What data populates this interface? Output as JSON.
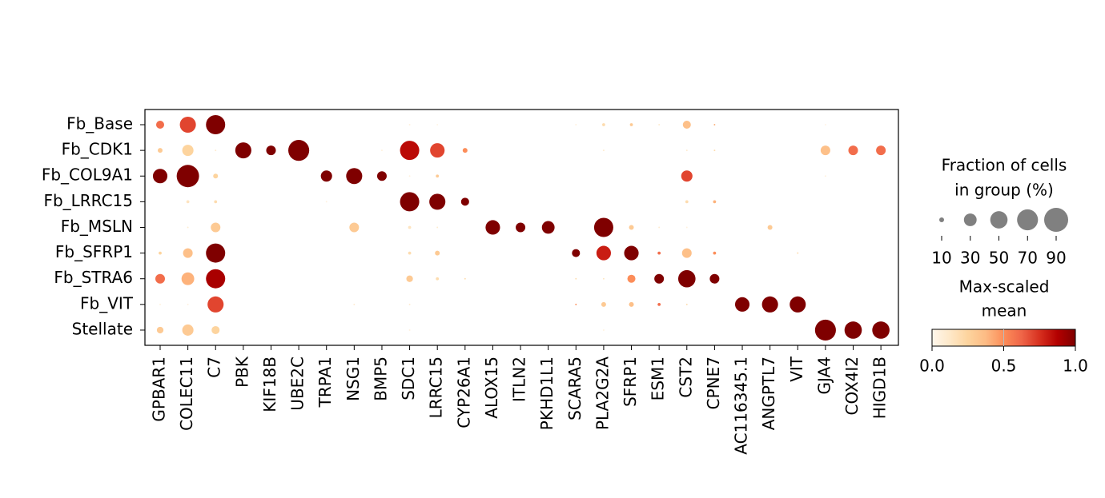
{
  "chart_data": {
    "type": "dotplot",
    "rows": [
      "Fb_Base",
      "Fb_CDK1",
      "Fb_COL9A1",
      "Fb_LRRC15",
      "Fb_MSLN",
      "Fb_SFRP1",
      "Fb_STRA6",
      "Fb_VIT",
      "Stellate"
    ],
    "columns": [
      "GPBAR1",
      "COLEC11",
      "C7",
      "PBK",
      "KIF18B",
      "UBE2C",
      "TRPA1",
      "NSG1",
      "BMP5",
      "SDC1",
      "LRRC15",
      "CYP26A1",
      "ALOX15",
      "ITLN2",
      "PKHD1L1",
      "SCARA5",
      "PLA2G2A",
      "SFRP1",
      "ESM1",
      "CST2",
      "CPNE7",
      "AC116345.1",
      "ANGPTL7",
      "VIT",
      "GJA4",
      "COX4I2",
      "HIGD1B"
    ],
    "fraction": [
      [
        16,
        44,
        60,
        0,
        0,
        0,
        0,
        0,
        0,
        7,
        7,
        0,
        0,
        0,
        0,
        7,
        8,
        8,
        7,
        16,
        7,
        0,
        0,
        0,
        7,
        0,
        0
      ],
      [
        10,
        25,
        7,
        44,
        20,
        70,
        0,
        0,
        7,
        60,
        37,
        10,
        0,
        0,
        0,
        0,
        7,
        0,
        0,
        7,
        7,
        0,
        0,
        0,
        20,
        20,
        20
      ],
      [
        37,
        79,
        10,
        0,
        0,
        0,
        25,
        44,
        20,
        7,
        8,
        0,
        0,
        0,
        0,
        0,
        0,
        0,
        0,
        25,
        0,
        0,
        0,
        0,
        7,
        0,
        0
      ],
      [
        0,
        8,
        8,
        0,
        0,
        0,
        7,
        0,
        0,
        60,
        44,
        16,
        0,
        0,
        0,
        0,
        0,
        0,
        0,
        8,
        8,
        0,
        0,
        0,
        0,
        0,
        0
      ],
      [
        0,
        7,
        20,
        0,
        0,
        0,
        0,
        20,
        0,
        8,
        7,
        0,
        37,
        20,
        30,
        0,
        60,
        10,
        7,
        7,
        0,
        0,
        10,
        0,
        0,
        0,
        0
      ],
      [
        8,
        20,
        60,
        0,
        0,
        0,
        0,
        0,
        0,
        8,
        10,
        0,
        0,
        0,
        0,
        16,
        37,
        37,
        8,
        20,
        8,
        0,
        0,
        7,
        0,
        0,
        0
      ],
      [
        20,
        30,
        60,
        0,
        0,
        0,
        0,
        0,
        0,
        13,
        8,
        7,
        0,
        0,
        0,
        7,
        7,
        16,
        20,
        50,
        20,
        0,
        0,
        0,
        0,
        0,
        0
      ],
      [
        7,
        7,
        44,
        0,
        0,
        0,
        0,
        7,
        0,
        7,
        0,
        0,
        0,
        0,
        0,
        7,
        10,
        10,
        8,
        7,
        0,
        37,
        44,
        44,
        0,
        0,
        0
      ],
      [
        13,
        25,
        16,
        0,
        0,
        0,
        0,
        0,
        0,
        7,
        0,
        0,
        0,
        0,
        0,
        0,
        7,
        0,
        0,
        0,
        0,
        0,
        0,
        0,
        70,
        50,
        50
      ]
    ],
    "mean": [
      [
        0.6,
        0.7,
        1,
        0,
        0,
        0,
        0,
        0,
        0,
        0.05,
        0.02,
        0,
        0,
        0,
        0,
        0.05,
        0.2,
        0.3,
        0.1,
        0.35,
        0.4,
        0,
        0,
        0,
        0.02,
        0,
        0
      ],
      [
        0.3,
        0.25,
        0.1,
        1,
        1,
        1,
        0,
        0,
        0.05,
        0.85,
        0.7,
        0.5,
        0,
        0,
        0,
        0,
        0.1,
        0,
        0,
        0.1,
        0.2,
        0,
        0,
        0,
        0.35,
        0.6,
        0.6
      ],
      [
        1,
        1,
        0.25,
        0,
        0,
        0,
        1,
        1,
        1,
        0.05,
        0.3,
        0,
        0,
        0,
        0,
        0,
        0,
        0,
        0,
        0.7,
        0,
        0,
        0,
        0,
        0.05,
        0,
        0
      ],
      [
        0,
        0.15,
        0.2,
        0,
        0,
        0,
        0.05,
        0,
        0,
        1,
        1,
        1,
        0,
        0,
        0,
        0,
        0,
        0,
        0,
        0.2,
        0.4,
        0,
        0,
        0,
        0,
        0,
        0
      ],
      [
        0,
        0.1,
        0.3,
        0,
        0,
        0,
        0,
        0.3,
        0,
        0.15,
        0.1,
        0,
        1,
        1,
        1,
        0,
        1,
        0.3,
        0.1,
        0.05,
        0,
        0,
        0.3,
        0,
        0,
        0,
        0
      ],
      [
        0.25,
        0.35,
        1,
        0,
        0,
        0,
        0,
        0,
        0,
        0.2,
        0.3,
        0,
        0,
        0,
        0,
        1,
        0.8,
        1,
        0.6,
        0.35,
        0.5,
        0,
        0,
        0.2,
        0,
        0,
        0
      ],
      [
        0.6,
        0.4,
        0.9,
        0,
        0,
        0,
        0,
        0,
        0,
        0.3,
        0.2,
        0.2,
        0,
        0,
        0,
        0.2,
        0.15,
        0.5,
        1,
        1,
        1,
        0,
        0,
        0,
        0,
        0,
        0
      ],
      [
        0.05,
        0.05,
        0.7,
        0,
        0,
        0,
        0,
        0.1,
        0,
        0.1,
        0,
        0,
        0,
        0,
        0,
        0.5,
        0.3,
        0.35,
        0.6,
        0.2,
        0,
        1,
        1,
        1,
        0,
        0,
        0
      ],
      [
        0.3,
        0.3,
        0.25,
        0,
        0,
        0,
        0,
        0,
        0,
        0.05,
        0,
        0,
        0,
        0,
        0,
        0,
        0.05,
        0,
        0,
        0,
        0,
        0,
        0,
        0,
        1,
        1,
        1
      ]
    ],
    "cmap": [
      "#fff7ec",
      "#fee8c8",
      "#fdd49e",
      "#fdbb84",
      "#fc8d59",
      "#ef6548",
      "#d7301f",
      "#b30000",
      "#7f0000"
    ],
    "size_legend": {
      "title": [
        "Fraction of cells",
        "in group (%)"
      ],
      "values": [
        10,
        30,
        50,
        70,
        90
      ],
      "color": "#808080"
    },
    "colorbar": {
      "title": [
        "Max-scaled",
        "mean"
      ],
      "lim": [
        0,
        1
      ],
      "ticks": [
        {
          "value": 0,
          "label": "0.0"
        },
        {
          "value": 0.5,
          "label": "0.5"
        },
        {
          "value": 1,
          "label": "1.0"
        }
      ]
    }
  }
}
